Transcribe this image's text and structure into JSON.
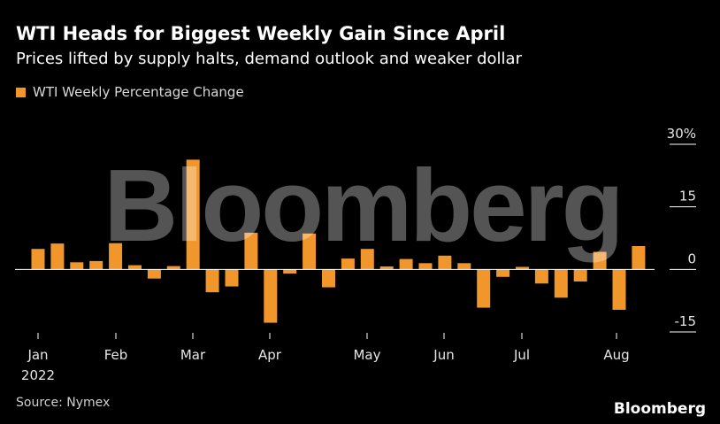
{
  "title": "WTI Heads for Biggest Weekly Gain Since April",
  "subtitle": "Prices lifted by supply halts, demand outlook and weaker dollar",
  "source": "Source: Nymex",
  "brand": "Bloomberg",
  "watermark": "Bloomberg",
  "colors": {
    "bar": "#f0962a",
    "background": "#000000",
    "text": "#ffffff",
    "axis": "#ffffff"
  },
  "chart_data": {
    "type": "bar",
    "legend": [
      "WTI Weekly Percentage Change"
    ],
    "legend_position": "top-left",
    "grid": false,
    "ylim": [
      -15,
      30
    ],
    "y_ticks": [
      "30%",
      "15",
      "0",
      "-15"
    ],
    "x_ticks": [
      "Jan",
      "Feb",
      "Mar",
      "Apr",
      "May",
      "Jun",
      "Jul",
      "Aug"
    ],
    "year_label": "2022",
    "series": [
      {
        "name": "WTI Weekly Percentage Change",
        "x": [
          "2022-01-07",
          "2022-01-14",
          "2022-01-21",
          "2022-01-28",
          "2022-02-04",
          "2022-02-11",
          "2022-02-18",
          "2022-02-25",
          "2022-03-04",
          "2022-03-11",
          "2022-03-18",
          "2022-03-25",
          "2022-04-01",
          "2022-04-08",
          "2022-04-14",
          "2022-04-22",
          "2022-04-29",
          "2022-05-06",
          "2022-05-13",
          "2022-05-20",
          "2022-05-27",
          "2022-06-03",
          "2022-06-10",
          "2022-06-17",
          "2022-06-24",
          "2022-07-01",
          "2022-07-08",
          "2022-07-15",
          "2022-07-22",
          "2022-07-29",
          "2022-08-05",
          "2022-08-12"
        ],
        "values": [
          4.9,
          6.2,
          1.7,
          2.0,
          6.3,
          1.0,
          -2.2,
          0.8,
          26.3,
          -5.5,
          -4.1,
          8.8,
          -12.8,
          -1.0,
          8.6,
          -4.3,
          2.6,
          4.9,
          0.7,
          2.5,
          1.5,
          3.3,
          1.5,
          -9.2,
          -1.8,
          0.6,
          -3.4,
          -6.8,
          -2.9,
          4.2,
          -9.7,
          5.6
        ]
      }
    ]
  }
}
